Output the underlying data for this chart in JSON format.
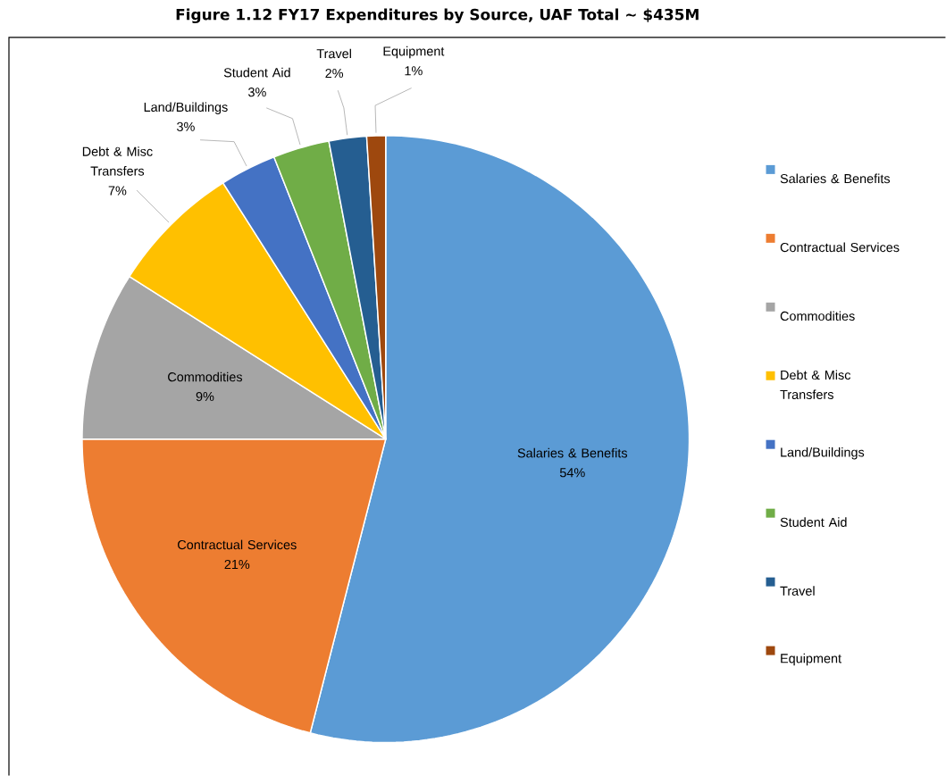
{
  "chart_data": {
    "type": "pie",
    "title": "Figure 1.12 FY17 Expenditures by Source, UAF Total ~ $435M",
    "categories": [
      "Salaries & Benefits",
      "Contractual Services",
      "Commodities",
      "Debt & Misc Transfers",
      "Land/Buildings",
      "Student Aid",
      "Travel",
      "Equipment"
    ],
    "values": [
      54,
      21,
      9,
      7,
      3,
      3,
      2,
      1
    ],
    "value_labels": [
      "54%",
      "21%",
      "9%",
      "7%",
      "3%",
      "3%",
      "2%",
      "1%"
    ],
    "colors": [
      "#5b9bd5",
      "#ed7d31",
      "#a5a5a5",
      "#ffc000",
      "#4472c4",
      "#70ad47",
      "#255e91",
      "#9e480e"
    ],
    "legend": "right"
  }
}
